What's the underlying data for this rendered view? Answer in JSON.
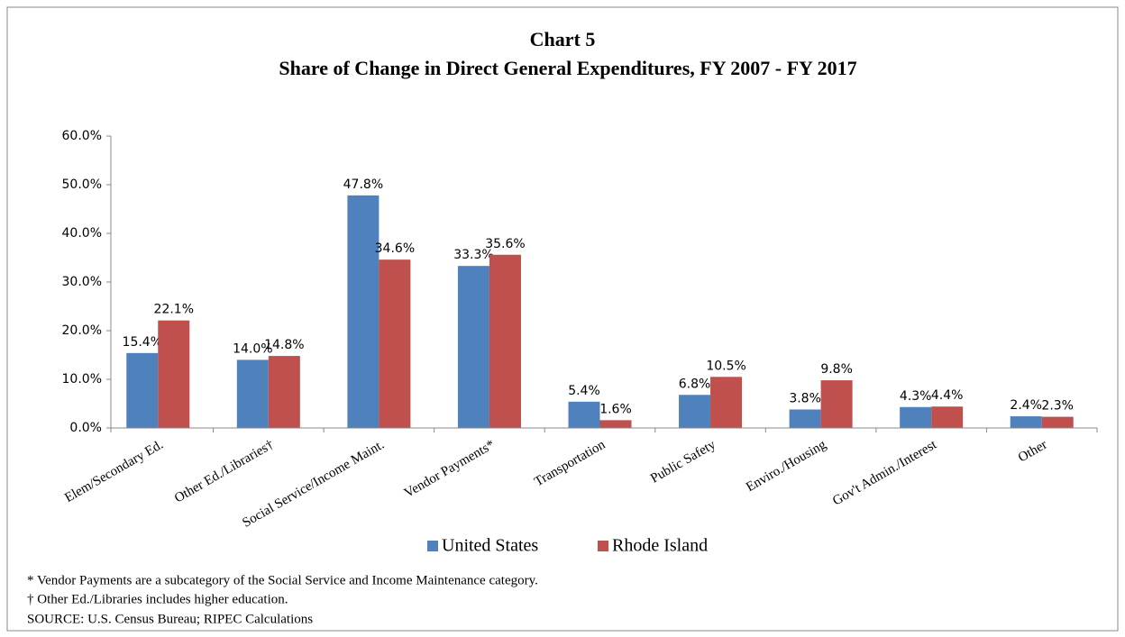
{
  "chart_data": {
    "type": "bar",
    "title": "Chart 5",
    "subtitle": "Share of Change in Direct General Expenditures, FY 2007 - FY 2017",
    "categories": [
      "Elem/Secondary Ed.",
      "Other Ed./Libraries†",
      "Social Service/Income Maint.",
      "Vendor Payments*",
      "Transportation",
      "Public Safety",
      "Enviro./Housing",
      "Gov't Admin./Interest",
      "Other"
    ],
    "series": [
      {
        "name": "United States",
        "color": "#4f81bd",
        "values": [
          15.4,
          14.0,
          47.8,
          33.3,
          5.4,
          6.8,
          3.8,
          4.3,
          2.4
        ],
        "value_labels": [
          "15.4%",
          "14.0%",
          "47.8%",
          "33.3%",
          "5.4%",
          "6.8%",
          "3.8%",
          "4.3%",
          "2.4%"
        ]
      },
      {
        "name": "Rhode Island",
        "color": "#c0504d",
        "values": [
          22.1,
          14.8,
          34.6,
          35.6,
          1.6,
          10.5,
          9.8,
          4.4,
          2.3
        ],
        "value_labels": [
          "22.1%",
          "14.8%",
          "34.6%",
          "35.6%",
          "1.6%",
          "10.5%",
          "9.8%",
          "4.4%",
          "2.3%"
        ]
      }
    ],
    "ylim": [
      0,
      60
    ],
    "yticks": [
      {
        "value": 0,
        "label": "0.0%"
      },
      {
        "value": 10,
        "label": "10.0%"
      },
      {
        "value": 20,
        "label": "20.0%"
      },
      {
        "value": 30,
        "label": "30.0%"
      },
      {
        "value": 40,
        "label": "40.0%"
      },
      {
        "value": 50,
        "label": "50.0%"
      },
      {
        "value": 60,
        "label": "60.0%"
      }
    ],
    "legend": "bottom",
    "notes": [
      "* Vendor Payments are a subcategory of the Social Service and Income Maintenance category.",
      "† Other Ed./Libraries includes higher education.",
      "SOURCE: U.S. Census Bureau; RIPEC Calculations"
    ]
  }
}
